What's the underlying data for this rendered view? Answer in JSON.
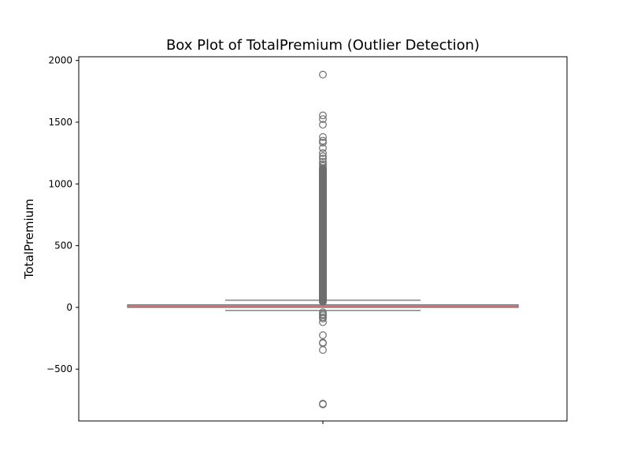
{
  "chart_data": {
    "type": "box",
    "title": "Box Plot of TotalPremium (Outlier Detection)",
    "xlabel": "",
    "ylabel": "TotalPremium",
    "ylim": [
      -920,
      2030
    ],
    "y_ticks": [
      2000,
      1500,
      1000,
      500,
      0,
      -500
    ],
    "y_tick_labels": [
      "2000",
      "1500",
      "1000",
      "500",
      "0",
      "−500"
    ],
    "grid": false,
    "colors": {
      "box_fill": "#e07b7b",
      "box_edge": "#7a7a7a",
      "median": "#7a7a7a",
      "whisker": "#7a7a7a",
      "flier_edge": "#6e6e6e"
    },
    "box": {
      "q1": 0,
      "median": 2,
      "q3": 21,
      "whisker_low": -25,
      "whisker_high": 58
    },
    "dense_outlier_range": [
      45,
      1130
    ],
    "outliers": [
      1885,
      1555,
      1525,
      1480,
      1380,
      1350,
      1335,
      1290,
      1250,
      1225,
      1205,
      1180,
      1160,
      1145,
      -40,
      -55,
      -65,
      -80,
      -90,
      -120,
      -225,
      -285,
      -290,
      -345,
      -780,
      -785
    ]
  }
}
